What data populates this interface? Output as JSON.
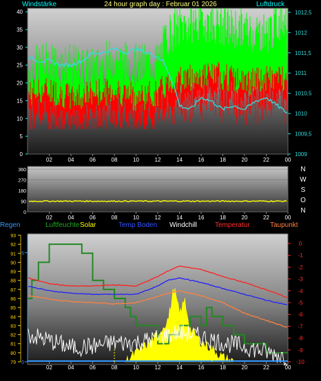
{
  "header": {
    "left_label": "Windstärke",
    "title": "24 hour graph day : Februar 01 2026",
    "right_label": "Luftdruck"
  },
  "colors": {
    "wind_cyan": "#00ffff",
    "gust_green": "#00ff00",
    "wind_red": "#ff0000",
    "pressure": "#33dddd",
    "direction": "#ffff00",
    "humidity": "#228822",
    "temp_air": "#ff2020",
    "temp_ground": "#2020ff",
    "dewpoint": "#ff8040",
    "windchill": "#ffffff",
    "rain": "#3399ff",
    "solar": "#ffff00",
    "tick_yellow": "#ffd700",
    "tick_red": "#ff3030"
  },
  "chart_data": [
    {
      "type": "area",
      "panel": "wind-pressure",
      "x_ticks": [
        "02",
        "04",
        "06",
        "08",
        "10",
        "12",
        "14",
        "16",
        "18",
        "20",
        "22",
        "00"
      ],
      "left_axis": {
        "label": "Windstärke",
        "ticks": [
          0,
          5,
          10,
          15,
          20,
          25,
          30,
          35,
          40
        ],
        "ylim": [
          0,
          41
        ]
      },
      "right_axis": {
        "label": "Luftdruck",
        "ticks": [
          "1009",
          "1009,5",
          "1010",
          "1010,5",
          "1011",
          "1011,5",
          "1012",
          "1012,5"
        ],
        "ylim": [
          1009,
          1012.6
        ]
      },
      "series": [
        {
          "name": "Böen",
          "hours": [
            0,
            2,
            4,
            6,
            8,
            10,
            12,
            13,
            14,
            16,
            18,
            20,
            22,
            24
          ],
          "values": [
            24,
            26,
            25,
            24,
            27,
            25,
            26,
            34,
            36,
            38,
            36,
            35,
            34,
            40
          ]
        },
        {
          "name": "Wind",
          "hours": [
            0,
            2,
            4,
            6,
            8,
            10,
            12,
            13,
            14,
            16,
            18,
            20,
            22,
            24
          ],
          "values": [
            17,
            18,
            16,
            17,
            18,
            16,
            17,
            20,
            21,
            22,
            22,
            20,
            21,
            22
          ]
        },
        {
          "name": "Luftdruck",
          "hours": [
            0,
            1,
            2,
            3,
            4,
            5,
            6,
            7,
            8,
            9,
            10,
            11,
            12,
            12.5,
            13,
            13.5,
            14,
            15,
            16,
            17,
            18,
            19,
            20,
            21,
            22,
            23,
            24
          ],
          "values": [
            1011.4,
            1011.3,
            1011.3,
            1011.2,
            1011.2,
            1011.3,
            1011.5,
            1011.5,
            1011.6,
            1011.5,
            1011.6,
            1011.5,
            1011.4,
            1011.3,
            1011.0,
            1010.7,
            1010.2,
            1010.1,
            1010.4,
            1010.3,
            1010.1,
            1010.2,
            1010.1,
            1010.3,
            1010.4,
            1010.2,
            1010.0
          ]
        }
      ]
    },
    {
      "type": "line",
      "panel": "wind-direction",
      "x_ticks": [
        "02",
        "04",
        "06",
        "08",
        "10",
        "12",
        "14",
        "16",
        "18",
        "20",
        "22",
        "00"
      ],
      "left_axis": {
        "ticks": [
          0,
          90,
          180,
          270,
          360
        ],
        "ylim": [
          0,
          360
        ]
      },
      "right_labels": [
        "N",
        "W",
        "S",
        "O",
        "N"
      ],
      "series": [
        {
          "name": "Windrichtung",
          "hours": [
            0,
            24
          ],
          "values": [
            90,
            90
          ]
        }
      ]
    },
    {
      "type": "line",
      "panel": "temperature",
      "x_ticks": [
        "02",
        "04",
        "06",
        "08",
        "10",
        "12",
        "14",
        "16",
        "18",
        "20",
        "22",
        "00"
      ],
      "legend": [
        "Regen",
        "Luftfeuchte",
        "Solar",
        "Temp Boden",
        "Windchill",
        "Temperatur",
        "Taupunkt"
      ],
      "humidity_axis": {
        "ticks": [
          79,
          80,
          81,
          82,
          83,
          84,
          85,
          86,
          87,
          88,
          89,
          90,
          91,
          92,
          93
        ],
        "ylim": [
          79,
          93
        ]
      },
      "rain_axis": {
        "ticks": [
          0,
          5
        ],
        "ylim": [
          0,
          5.8
        ]
      },
      "temp_axis": {
        "ticks": [
          -10,
          -9,
          -8,
          -7,
          -6,
          -5,
          -4,
          -3,
          -2,
          -1,
          0
        ],
        "ylim": [
          -10,
          0.7
        ]
      },
      "series": [
        {
          "name": "Temperatur",
          "hours": [
            0,
            2,
            4,
            6,
            8,
            10,
            12,
            13,
            14,
            16,
            18,
            20,
            22,
            24
          ],
          "values": [
            -2.9,
            -3.4,
            -3.6,
            -3.6,
            -3.5,
            -3.6,
            -2.8,
            -2.3,
            -1.9,
            -2.2,
            -2.8,
            -3.3,
            -3.9,
            -4.6
          ]
        },
        {
          "name": "Temp Boden",
          "hours": [
            0,
            2,
            4,
            6,
            8,
            10,
            12,
            13,
            14,
            16,
            18,
            20,
            22,
            24
          ],
          "values": [
            -3.6,
            -4.0,
            -4.2,
            -4.3,
            -4.3,
            -4.3,
            -3.6,
            -3.1,
            -2.9,
            -3.3,
            -3.8,
            -4.3,
            -4.8,
            -5.2
          ]
        },
        {
          "name": "Taupunkt",
          "hours": [
            0,
            2,
            4,
            6,
            8,
            10,
            12,
            13,
            14,
            16,
            18,
            20,
            22,
            24
          ],
          "values": [
            -4.4,
            -4.7,
            -4.9,
            -5.0,
            -5.1,
            -5.0,
            -4.5,
            -4.2,
            -4.0,
            -4.4,
            -5.0,
            -5.9,
            -6.5,
            -7.1
          ]
        },
        {
          "name": "Windchill",
          "hours": [
            0,
            2,
            4,
            6,
            8,
            10,
            12,
            14,
            16,
            18,
            20,
            22,
            24
          ],
          "values": [
            -7.7,
            -8.2,
            -8.8,
            -8.7,
            -8.4,
            -8.4,
            -8.0,
            -7.5,
            -7.9,
            -8.4,
            -8.7,
            -9.2,
            -9.6
          ]
        },
        {
          "name": "Luftfeuchte",
          "hours": [
            0,
            0.4,
            1,
            1.5,
            2,
            3,
            4,
            5,
            6,
            7,
            8,
            9,
            9.5,
            10,
            11,
            12,
            13,
            14,
            15,
            16,
            16.5,
            17,
            18,
            19,
            20,
            21,
            22,
            23,
            24
          ],
          "values": [
            86,
            88,
            90,
            90,
            92,
            92,
            92,
            91,
            88,
            87,
            86,
            85,
            84,
            83,
            83,
            81,
            82,
            83,
            84,
            83,
            85,
            84,
            83,
            82,
            81,
            81,
            80,
            80,
            80
          ]
        },
        {
          "name": "Solar",
          "hours": [
            9,
            10,
            11,
            12,
            13,
            13.5,
            14,
            14.5,
            15,
            16,
            17,
            18,
            19
          ],
          "values": [
            0,
            0.4,
            0.8,
            1.2,
            2.0,
            3.4,
            2.2,
            2.8,
            1.5,
            0.9,
            0.6,
            0.2,
            0
          ]
        },
        {
          "name": "Regen",
          "hours": [
            0,
            24
          ],
          "values": [
            0,
            0
          ]
        }
      ]
    }
  ]
}
